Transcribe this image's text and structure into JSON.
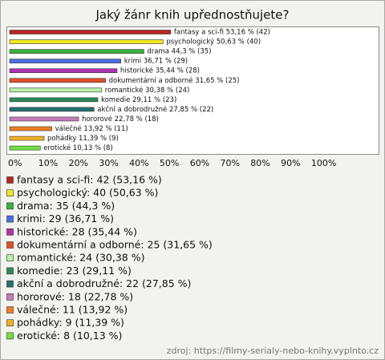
{
  "chart_data": {
    "type": "bar",
    "orientation": "horizontal",
    "title": "Jaký žánr knih upřednostňujete?",
    "values": [
      53.16,
      50.63,
      44.3,
      36.71,
      35.44,
      31.65,
      30.38,
      29.11,
      27.85,
      22.78,
      13.92,
      11.39,
      10.13
    ],
    "colors": [
      "#b8261f",
      "#f2e623",
      "#38b23a",
      "#4a6ee0",
      "#b02fb5",
      "#e0502a",
      "#b8f2a8",
      "#2a8a56",
      "#23706e",
      "#c57ab8",
      "#ee7d22",
      "#f0b022",
      "#6ee33e"
    ],
    "value_labels": [
      "fantasy a sci-fi 53,16 % (42)",
      "psychologický 50,63 % (40)",
      "drama 44,3 % (35)",
      "krimi 36,71 % (29)",
      "historické 35,44 % (28)",
      "dokumentární a odborné 31,65 % (25)",
      "romantické 30,38 % (24)",
      "komedie 29,11 % (23)",
      "akční a dobrodružné 27,85 % (22)",
      "hororové 22,78 % (18)",
      "válečné 13,92 % (11)",
      "pohádky 11,39 % (9)",
      "erotické 10,13 % (8)"
    ],
    "legend_labels": [
      "fantasy a sci-fi: 42 (53,16 %)",
      "psychologický: 40 (50,63 %)",
      "drama: 35 (44,3 %)",
      "krimi: 29 (36,71 %)",
      "historické: 28 (35,44 %)",
      "dokumentární a odborné: 25 (31,65 %)",
      "romantické: 24 (30,38 %)",
      "komedie: 23 (29,11 %)",
      "akční a dobrodružné: 22 (27,85 %)",
      "hororové: 18 (22,78 %)",
      "válečné: 11 (13,92 %)",
      "pohádky: 9 (11,39 %)",
      "erotické: 8 (10,13 %)"
    ],
    "xlim": [
      0,
      122
    ],
    "xticks": [
      {
        "value": 0,
        "label": "0%"
      },
      {
        "value": 10,
        "label": "10%"
      },
      {
        "value": 20,
        "label": "20%"
      },
      {
        "value": 30,
        "label": "30%"
      },
      {
        "value": 40,
        "label": "40%"
      },
      {
        "value": 50,
        "label": "50%"
      },
      {
        "value": 60,
        "label": "60%"
      },
      {
        "value": 70,
        "label": "70%"
      },
      {
        "value": 80,
        "label": "80%"
      },
      {
        "value": 90,
        "label": "90%"
      },
      {
        "value": 100,
        "label": "100%"
      }
    ],
    "source": "zdroj: https://filmy-serialy-nebo-knihy.vyplnto.cz"
  }
}
